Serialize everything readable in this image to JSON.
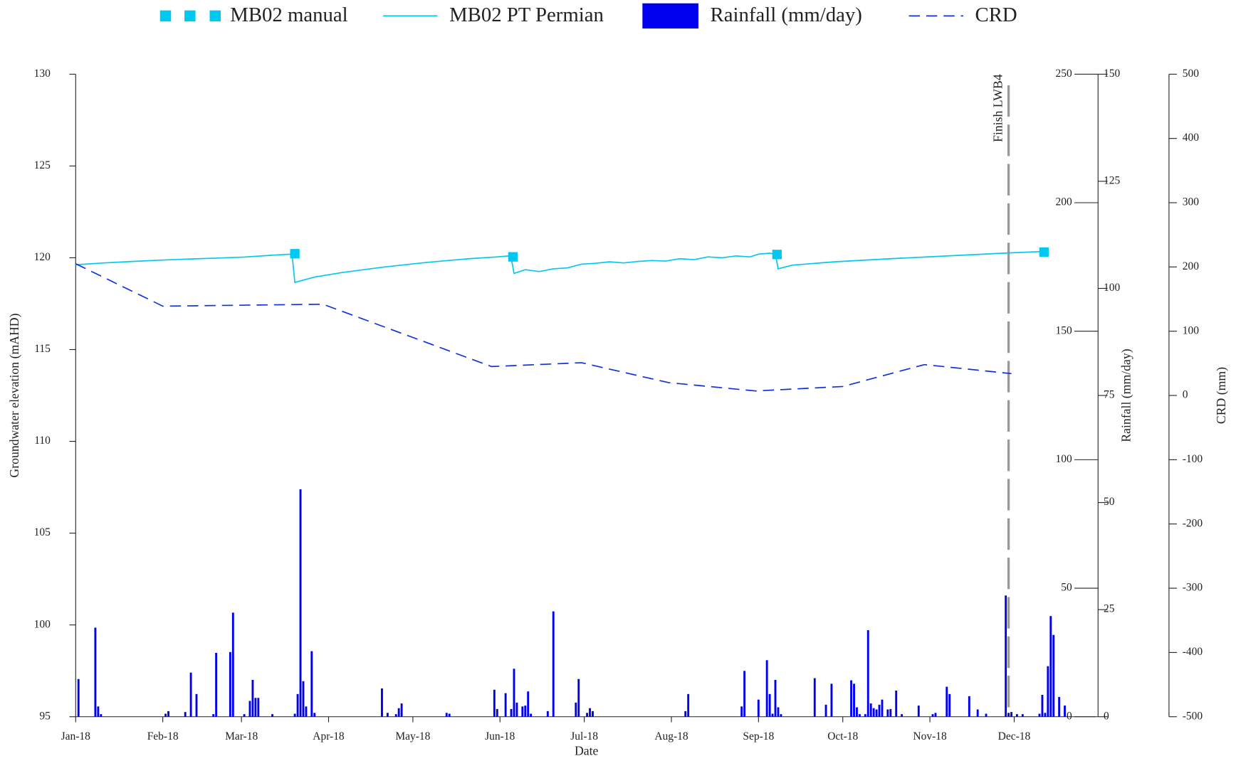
{
  "chart_data": {
    "type": "line",
    "xlabel": "Date",
    "ylabel": "Groundwater elevation (mAHD)",
    "y2label": "Rainfall (mm/day)",
    "y4label": "CRD (mm)",
    "xlim": [
      0,
      363
    ],
    "xticks": [
      {
        "value": 0,
        "label": "Jan-18"
      },
      {
        "value": 31,
        "label": "Feb-18"
      },
      {
        "value": 59,
        "label": "Mar-18"
      },
      {
        "value": 90,
        "label": "Apr-18"
      },
      {
        "value": 120,
        "label": "May-18"
      },
      {
        "value": 151,
        "label": "Jun-18"
      },
      {
        "value": 181,
        "label": "Jul-18"
      },
      {
        "value": 212,
        "label": "Aug-18"
      },
      {
        "value": 243,
        "label": "Sep-18"
      },
      {
        "value": 273,
        "label": "Oct-18"
      },
      {
        "value": 304,
        "label": "Nov-18"
      },
      {
        "value": 334,
        "label": "Dec-18"
      }
    ],
    "ylim": [
      95,
      130
    ],
    "yticks": [
      95,
      100,
      105,
      110,
      115,
      120,
      125,
      130
    ],
    "y2lim": [
      0,
      150
    ],
    "y2ticks": [
      0,
      25,
      50,
      75,
      100,
      125,
      150
    ],
    "y3lim": [
      0,
      250
    ],
    "y3ticks": [
      0,
      50,
      100,
      150,
      200,
      250
    ],
    "y4lim": [
      -500,
      500
    ],
    "y4ticks": [
      -500,
      -400,
      -300,
      -200,
      -100,
      0,
      100,
      200,
      300,
      400,
      500
    ],
    "annotations": [
      {
        "text": "Finish LWB4",
        "x": 332
      }
    ],
    "series": [
      {
        "name": "MB02 manual",
        "type": "scatter",
        "marker": "square",
        "color": "#00c8f0",
        "x": [
          78,
          155.6,
          249.6,
          344.6
        ],
        "values": [
          120.22,
          120.05,
          120.18,
          120.31
        ]
      },
      {
        "name": "MB02 PT Permian",
        "type": "line",
        "color": "#00c8f0",
        "x": [
          0,
          10,
          20,
          30,
          40,
          50,
          60,
          70,
          77,
          78,
          85,
          95,
          110,
          125,
          140,
          150,
          154,
          155,
          156,
          160,
          165,
          170,
          175,
          180,
          185,
          190,
          195,
          200,
          205,
          210,
          215,
          220,
          225,
          230,
          235,
          240,
          243,
          247,
          249,
          250,
          255,
          270,
          290,
          310,
          330,
          345
        ],
        "values": [
          119.62,
          119.72,
          119.8,
          119.87,
          119.93,
          119.98,
          120.04,
          120.14,
          120.2,
          118.66,
          118.95,
          119.2,
          119.5,
          119.75,
          119.95,
          120.05,
          120.1,
          120.0,
          119.15,
          119.35,
          119.25,
          119.4,
          119.45,
          119.65,
          119.7,
          119.78,
          119.72,
          119.8,
          119.85,
          119.82,
          119.95,
          119.9,
          120.05,
          120.0,
          120.1,
          120.05,
          120.2,
          120.25,
          120.2,
          119.4,
          119.6,
          119.78,
          119.95,
          120.1,
          120.25,
          120.35
        ]
      },
      {
        "name": "Rainfall (mm/day)",
        "type": "bar",
        "axis": "y2",
        "color": "#0000ee",
        "x": [
          1,
          7,
          8,
          9,
          32,
          33,
          39,
          41,
          43,
          49,
          50,
          55,
          56,
          60,
          62,
          63,
          64,
          65,
          70,
          78,
          79,
          80,
          81,
          82,
          84,
          85,
          109,
          111,
          114,
          115,
          116,
          132,
          133,
          149,
          150,
          153,
          155,
          156,
          157,
          159,
          160,
          161,
          162,
          168,
          170,
          178,
          179,
          182,
          183,
          184,
          217,
          218,
          237,
          238,
          243,
          246,
          247,
          248,
          249,
          250,
          251,
          263,
          267,
          269,
          276,
          277,
          278,
          279,
          281,
          282,
          283,
          284,
          285,
          286,
          287,
          289,
          290,
          292,
          294,
          300,
          305,
          306,
          310,
          311,
          318,
          321,
          324,
          331,
          332,
          333,
          335,
          337,
          343,
          344,
          345,
          346,
          347,
          348,
          350,
          352
        ],
        "values": [
          8.8,
          20.8,
          2.4,
          0.6,
          0.7,
          1.3,
          1.1,
          10.3,
          5.3,
          0.6,
          14.9,
          15.1,
          24.3,
          0.6,
          3.7,
          8.6,
          4.4,
          4.4,
          0.6,
          0.7,
          5.3,
          53.1,
          8.3,
          2.4,
          15.3,
          0.9,
          6.6,
          0.9,
          0.6,
          2.0,
          3.1,
          0.9,
          0.7,
          6.3,
          1.8,
          5.5,
          1.8,
          11.2,
          3.3,
          2.4,
          2.6,
          5.9,
          0.7,
          1.3,
          24.6,
          3.3,
          8.8,
          0.9,
          2.0,
          1.3,
          1.3,
          5.3,
          2.4,
          10.7,
          4.0,
          13.2,
          5.3,
          0.7,
          8.6,
          2.2,
          0.6,
          9.0,
          2.8,
          7.7,
          8.5,
          7.7,
          2.2,
          0.6,
          0.6,
          20.2,
          3.1,
          2.0,
          1.7,
          2.8,
          4.0,
          1.7,
          1.8,
          6.1,
          0.6,
          2.6,
          0.6,
          0.9,
          7.0,
          5.3,
          4.8,
          1.7,
          0.7,
          28.3,
          0.9,
          1.1,
          0.6,
          0.6,
          0.7,
          5.1,
          0.9,
          11.8,
          23.5,
          19.1,
          4.6,
          2.6
        ]
      },
      {
        "name": "CRD",
        "type": "line",
        "linestyle": "dashed",
        "axis": "y4",
        "color": "#1030e0",
        "x": [
          0,
          31,
          88,
          148,
          180,
          211,
          242,
          273,
          302,
          333
        ],
        "values": [
          205,
          139,
          142,
          45,
          51,
          20,
          7,
          14,
          48,
          34
        ]
      }
    ]
  }
}
